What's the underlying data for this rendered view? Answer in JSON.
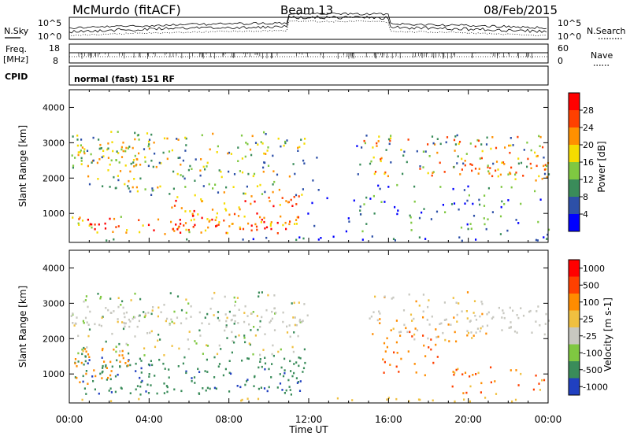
{
  "header": {
    "station": "McMurdo (fitACF)",
    "beam": "Beam 13",
    "date": "08/Feb/2015"
  },
  "top_panels": {
    "nsky_label": "N.Sky",
    "nsearch_label": "N.Search",
    "noise_ticks_left": [
      "10^5",
      "10^0"
    ],
    "noise_ticks_right": [
      "10^5",
      "10^0"
    ],
    "freq_label": "Freq.",
    "freq_unit": "[MHz]",
    "freq_ticks": [
      "18",
      "8"
    ],
    "nave_label": "Nave",
    "nave_ticks": [
      "60",
      "0"
    ],
    "cpid_label": "CPID",
    "cpid_value": "normal (fast) 151 RF"
  },
  "chart_data": [
    {
      "type": "heatmap",
      "title": "",
      "xlabel": "",
      "ylabel": "Slant Range [km]",
      "ylim": [
        180,
        4500
      ],
      "yticks": [
        "1000",
        "2000",
        "3000",
        "4000"
      ],
      "colorbar": {
        "label": "Power [dB]",
        "ticks": [
          "4",
          "8",
          "12",
          "16",
          "20",
          "24",
          "28"
        ],
        "range": [
          0,
          32
        ],
        "colors": [
          "#0000ff",
          "#2d50a8",
          "#3a8c5a",
          "#7fc841",
          "#f5dc00",
          "#ff9000",
          "#ff4000",
          "#ff0000"
        ]
      }
    },
    {
      "type": "heatmap",
      "title": "",
      "xlabel": "Time UT",
      "ylabel": "Slant Range [km]",
      "ylim": [
        180,
        4500
      ],
      "yticks": [
        "1000",
        "2000",
        "3000",
        "4000"
      ],
      "xticks": [
        "00:00",
        "04:00",
        "08:00",
        "12:00",
        "16:00",
        "20:00",
        "00:00"
      ],
      "colorbar": {
        "label": "Velocity [m s-1]",
        "ticks": [
          "1000",
          "500",
          "100",
          "25",
          "-25",
          "-100",
          "-500",
          "-1000"
        ],
        "colors": [
          "#2040c0",
          "#3a8c5a",
          "#7fc841",
          "#c8c8c0",
          "#f0c040",
          "#ff8c00",
          "#ff4000",
          "#ff0000"
        ]
      }
    }
  ]
}
